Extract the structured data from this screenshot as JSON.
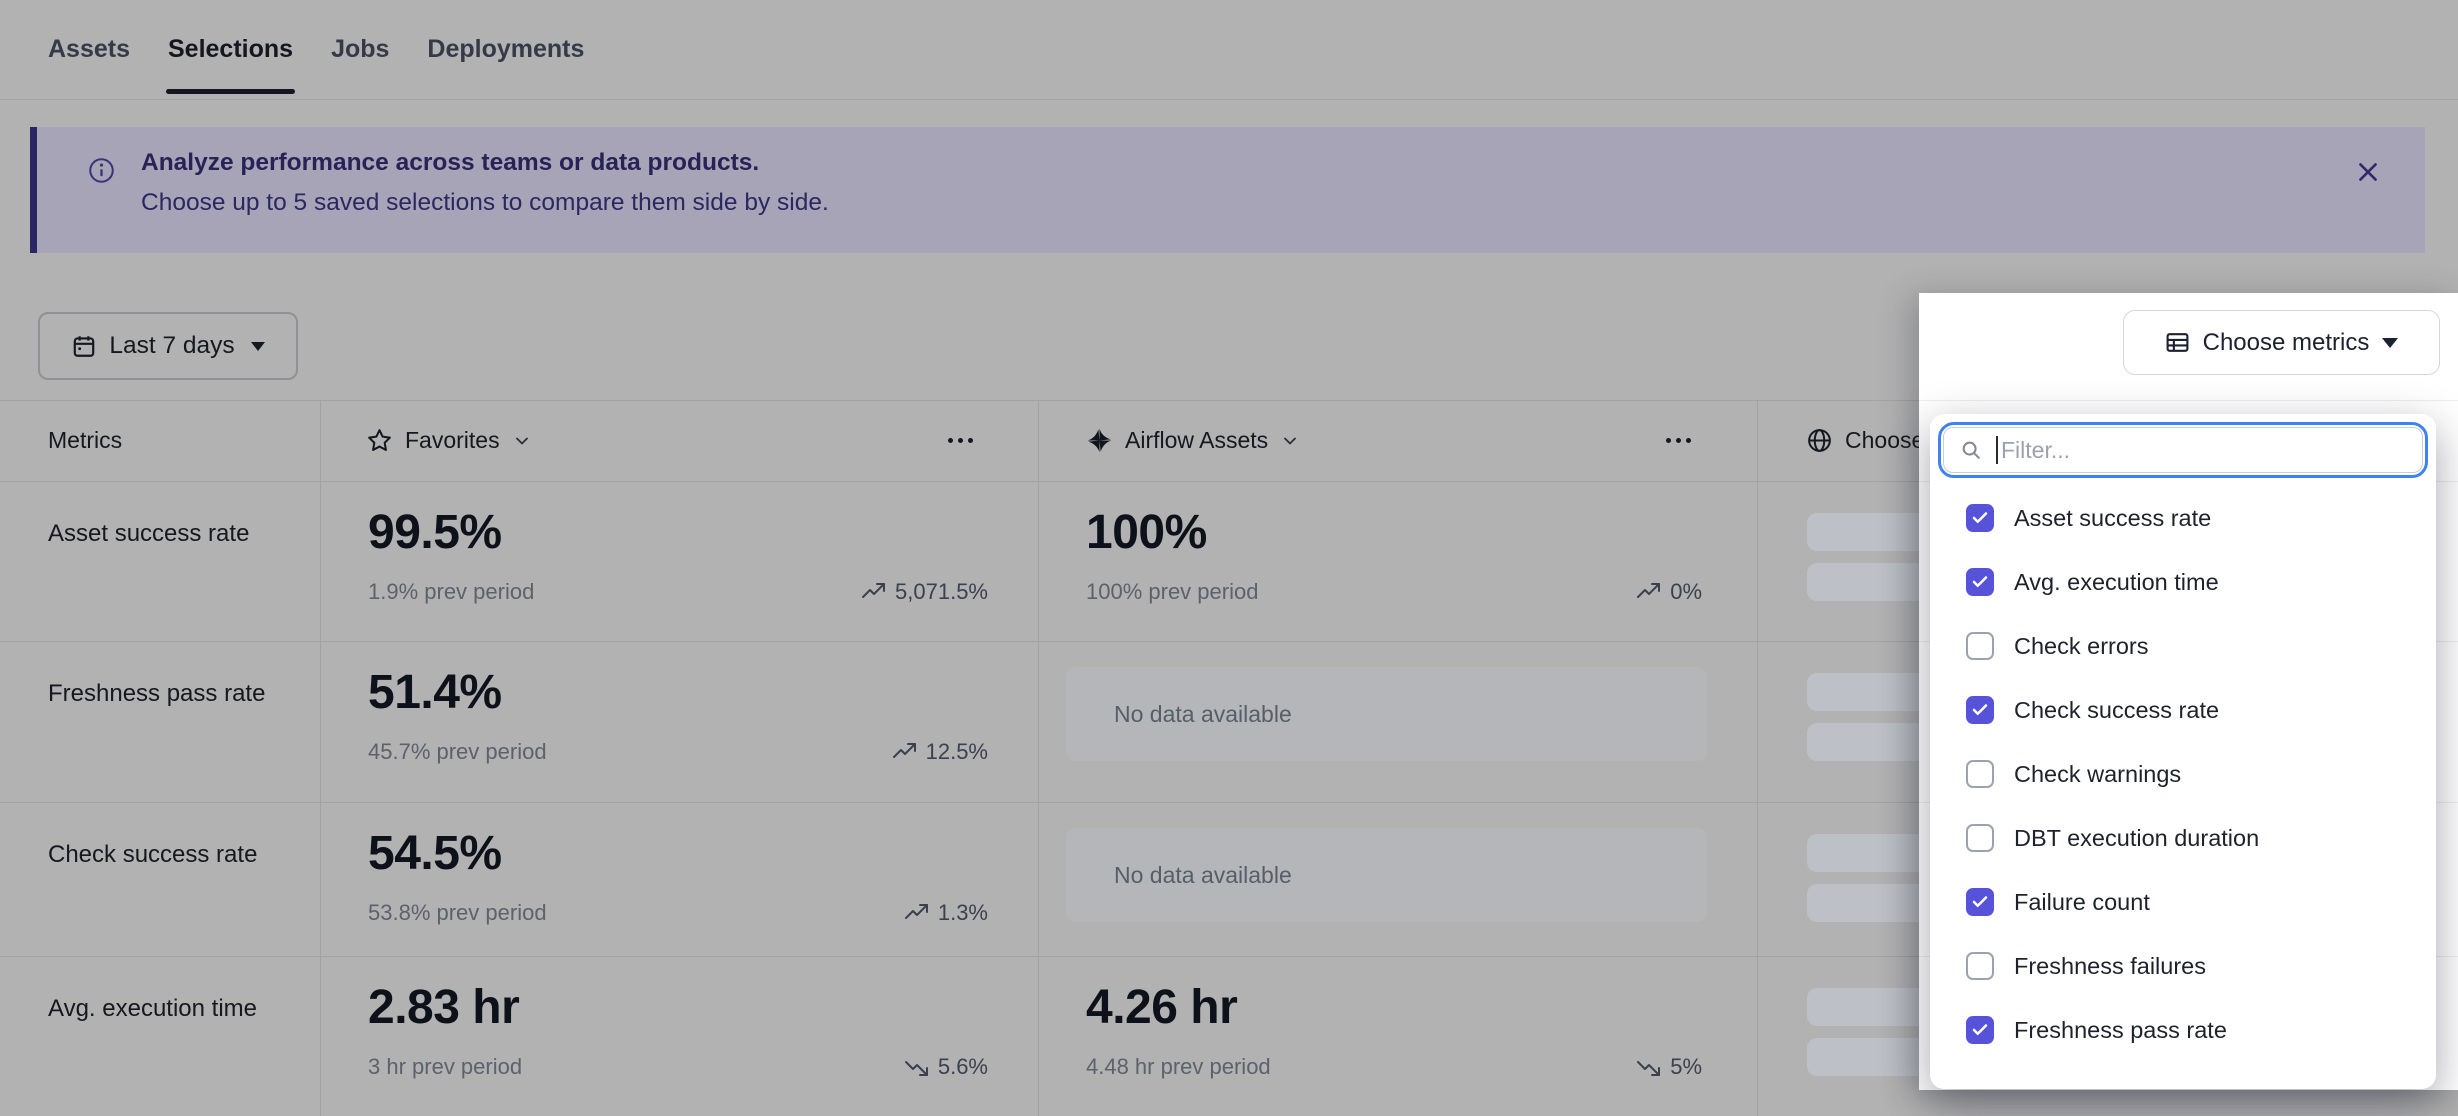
{
  "nav": {
    "tabs": [
      {
        "label": "Assets",
        "active": false
      },
      {
        "label": "Selections",
        "active": true
      },
      {
        "label": "Jobs",
        "active": false
      },
      {
        "label": "Deployments",
        "active": false
      }
    ]
  },
  "banner": {
    "title": "Analyze performance across teams or data products.",
    "subtitle": "Choose up to 5 saved selections to compare them side by side."
  },
  "toolbar": {
    "date_range": "Last 7 days",
    "choose_metrics_label": "Choose metrics"
  },
  "table": {
    "metrics_header": "Metrics",
    "columns": [
      {
        "name": "Favorites",
        "icon": "star-icon"
      },
      {
        "name": "Airflow Assets",
        "icon": "airflow-pinwheel-icon"
      },
      {
        "name": "Choose",
        "icon": "globe-icon"
      }
    ],
    "no_data_label": "No data available",
    "rows": [
      {
        "metric": "Asset success rate",
        "favorites": {
          "value": "99.5%",
          "prev": "1.9% prev period",
          "trend": "5,071.5%",
          "dir": "up"
        },
        "airflow": {
          "value": "100%",
          "prev": "100% prev period",
          "trend": "0%",
          "dir": "up"
        }
      },
      {
        "metric": "Freshness pass rate",
        "favorites": {
          "value": "51.4%",
          "prev": "45.7% prev period",
          "trend": "12.5%",
          "dir": "up"
        },
        "airflow": {
          "no_data": true
        }
      },
      {
        "metric": "Check success rate",
        "favorites": {
          "value": "54.5%",
          "prev": "53.8% prev period",
          "trend": "1.3%",
          "dir": "up"
        },
        "airflow": {
          "no_data": true
        }
      },
      {
        "metric": "Avg. execution time",
        "favorites": {
          "value": "2.83 hr",
          "prev": "3 hr prev period",
          "trend": "5.6%",
          "dir": "down"
        },
        "airflow": {
          "value": "4.26 hr",
          "prev": "4.48 hr prev period",
          "trend": "5%",
          "dir": "down"
        }
      }
    ]
  },
  "metrics_dropdown": {
    "filter_placeholder": "Filter...",
    "options": [
      {
        "label": "Asset success rate",
        "checked": true
      },
      {
        "label": "Avg. execution time",
        "checked": true
      },
      {
        "label": "Check errors",
        "checked": false
      },
      {
        "label": "Check success rate",
        "checked": true
      },
      {
        "label": "Check warnings",
        "checked": false
      },
      {
        "label": "DBT execution duration",
        "checked": false
      },
      {
        "label": "Failure count",
        "checked": true
      },
      {
        "label": "Freshness failures",
        "checked": false
      },
      {
        "label": "Freshness pass rate",
        "checked": true
      }
    ]
  },
  "colors": {
    "accent_indigo": "#5652d9",
    "focus_ring_blue": "#3f82f6",
    "banner_text_indigo": "#272357",
    "banner_background": "#a7a4b7",
    "banner_border": "#2a2664",
    "page_dim_gray": "#b2b2b2"
  }
}
